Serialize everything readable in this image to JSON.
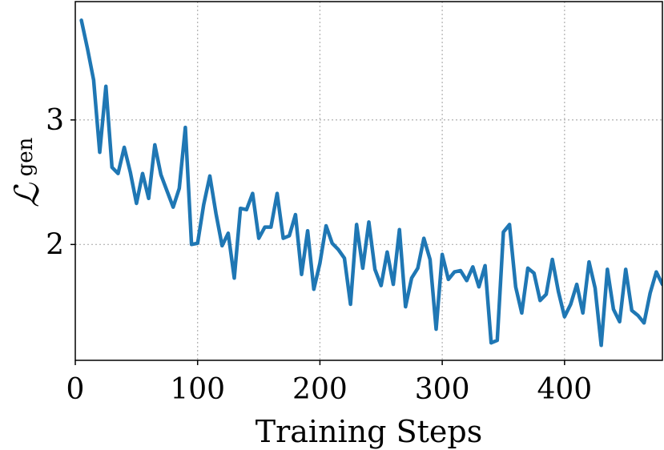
{
  "chart_data": {
    "type": "line",
    "title": "",
    "xlabel": "Training Steps",
    "ylabel": "ℒ",
    "ylabel_subscript": "gen",
    "xlim": [
      0,
      480
    ],
    "ylim": [
      1.07,
      3.95
    ],
    "xticks": [
      0,
      100,
      200,
      300,
      400
    ],
    "xtick_labels": [
      "0",
      "100",
      "200",
      "300",
      "400"
    ],
    "yticks": [
      2,
      3
    ],
    "ytick_labels": [
      "2",
      "3"
    ],
    "grid": true,
    "series": [
      {
        "color": "#1f77b4",
        "x": [
          5,
          10,
          15,
          20,
          25,
          30,
          35,
          40,
          45,
          50,
          55,
          60,
          65,
          70,
          75,
          80,
          85,
          90,
          95,
          100,
          105,
          110,
          115,
          120,
          125,
          130,
          135,
          140,
          145,
          150,
          155,
          160,
          165,
          170,
          175,
          180,
          185,
          190,
          195,
          200,
          205,
          210,
          215,
          220,
          225,
          230,
          235,
          240,
          245,
          250,
          255,
          260,
          265,
          270,
          275,
          280,
          285,
          290,
          295,
          300,
          305,
          310,
          315,
          320,
          325,
          330,
          335,
          340,
          345,
          350,
          355,
          360,
          365,
          370,
          375,
          380,
          385,
          390,
          395,
          400,
          405,
          410,
          415,
          420,
          425,
          430,
          435,
          440,
          445,
          450,
          455,
          460,
          465,
          470,
          475,
          480
        ],
        "y": [
          3.8,
          3.57,
          3.32,
          2.74,
          3.27,
          2.62,
          2.57,
          2.78,
          2.58,
          2.33,
          2.57,
          2.37,
          2.8,
          2.56,
          2.43,
          2.3,
          2.45,
          2.94,
          2.0,
          2.01,
          2.32,
          2.55,
          2.25,
          1.99,
          2.09,
          1.73,
          2.29,
          2.28,
          2.41,
          2.05,
          2.14,
          2.14,
          2.41,
          2.05,
          2.07,
          2.24,
          1.76,
          2.11,
          1.64,
          1.85,
          2.15,
          2.01,
          1.96,
          1.89,
          1.52,
          2.16,
          1.81,
          2.18,
          1.8,
          1.67,
          1.94,
          1.68,
          2.12,
          1.5,
          1.73,
          1.81,
          2.05,
          1.88,
          1.32,
          1.92,
          1.72,
          1.78,
          1.79,
          1.71,
          1.82,
          1.66,
          1.83,
          1.21,
          1.23,
          2.1,
          2.16,
          1.66,
          1.45,
          1.81,
          1.77,
          1.55,
          1.6,
          1.88,
          1.62,
          1.42,
          1.52,
          1.68,
          1.45,
          1.86,
          1.65,
          1.19,
          1.8,
          1.48,
          1.38,
          1.8,
          1.47,
          1.43,
          1.37,
          1.61,
          1.78,
          1.68
        ]
      }
    ]
  }
}
